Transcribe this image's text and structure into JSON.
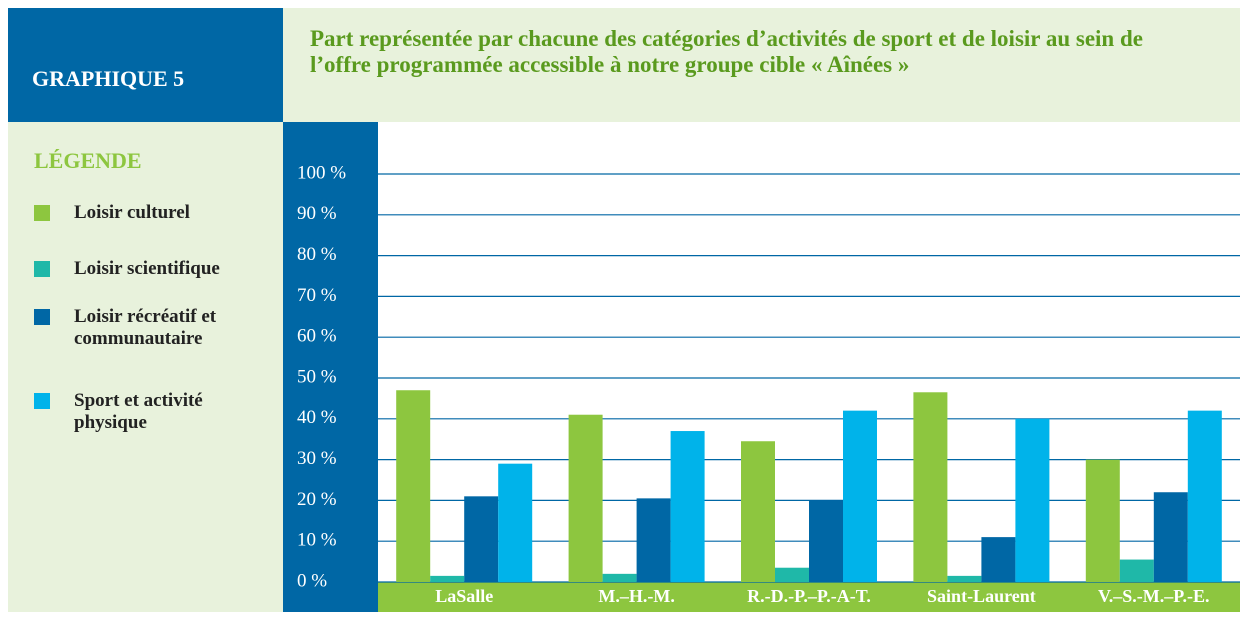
{
  "header": {
    "label": "GRAPHIQUE 5"
  },
  "chart_data": {
    "type": "bar",
    "title": "Part représentée par chacune des catégories d’activités de sport et de loisir au sein de l’offre programmée accessible à notre groupe cible « Aînées »",
    "legend_title": "LÉGENDE",
    "categories": [
      "LaSalle",
      "M.–H.-M.",
      "R.-D.-P.–P.-A-T.",
      "Saint-Laurent",
      "V.–S.-M.–P.-E."
    ],
    "series": [
      {
        "name": "Loisir culturel",
        "color": "#8dc63f",
        "values": [
          47,
          41,
          34.5,
          46.5,
          30
        ]
      },
      {
        "name": "Loisir scientifique",
        "color": "#1fb8a8",
        "values": [
          1.5,
          2,
          3.5,
          1.5,
          5.5
        ]
      },
      {
        "name": "Loisir récréatif et communautaire",
        "color": "#0067a5",
        "values": [
          21,
          20.5,
          20,
          11,
          22
        ]
      },
      {
        "name": "Sport et activité physique",
        "color": "#00b3ea",
        "values": [
          29,
          37,
          42,
          40,
          42
        ]
      }
    ],
    "ylim": [
      0,
      100
    ],
    "yticks": [
      {
        "value": 0,
        "label": "0 %"
      },
      {
        "value": 10,
        "label": "10 %"
      },
      {
        "value": 20,
        "label": "20 %"
      },
      {
        "value": 30,
        "label": "30 %"
      },
      {
        "value": 40,
        "label": "40 %"
      },
      {
        "value": 50,
        "label": "50 %"
      },
      {
        "value": 60,
        "label": "60 %"
      },
      {
        "value": 70,
        "label": "70 %"
      },
      {
        "value": 80,
        "label": "80 %"
      },
      {
        "value": 90,
        "label": "90 %"
      },
      {
        "value": 100,
        "label": "100 %"
      }
    ],
    "grid": true
  }
}
